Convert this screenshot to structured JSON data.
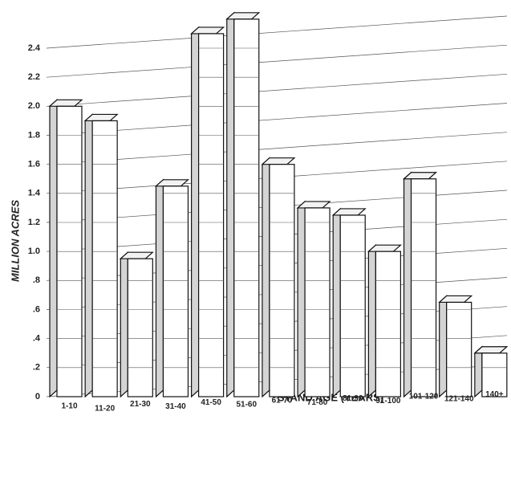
{
  "chart_data": {
    "type": "bar3d",
    "y_label": "MILLION ACRES",
    "x_label": "STAND AGE (YEARS)",
    "categories": [
      "1-10",
      "11-20",
      "21-30",
      "31-40",
      "41-50",
      "51-60",
      "61-70",
      "71-80",
      "81-90",
      "91-100",
      "101-120",
      "121-140",
      "140+"
    ],
    "values": [
      2.0,
      1.9,
      0.95,
      1.45,
      2.5,
      2.6,
      1.6,
      1.3,
      1.25,
      1.0,
      1.5,
      0.65,
      0.3
    ],
    "color": "#ffffff",
    "ylim": [
      0,
      2.4
    ],
    "yticks": [
      0,
      {
        "value": 0.2,
        "label": ".2"
      },
      {
        "value": 0.4,
        "label": ".4"
      },
      {
        "value": 0.6,
        "label": ".6"
      },
      {
        "value": 0.8,
        "label": ".8"
      },
      {
        "value": 1.0,
        "label": "1.0"
      },
      1.2,
      1.4,
      1.6,
      1.8,
      {
        "value": 2.0,
        "label": "2.0"
      },
      2.2,
      2.4
    ],
    "grid": true
  }
}
